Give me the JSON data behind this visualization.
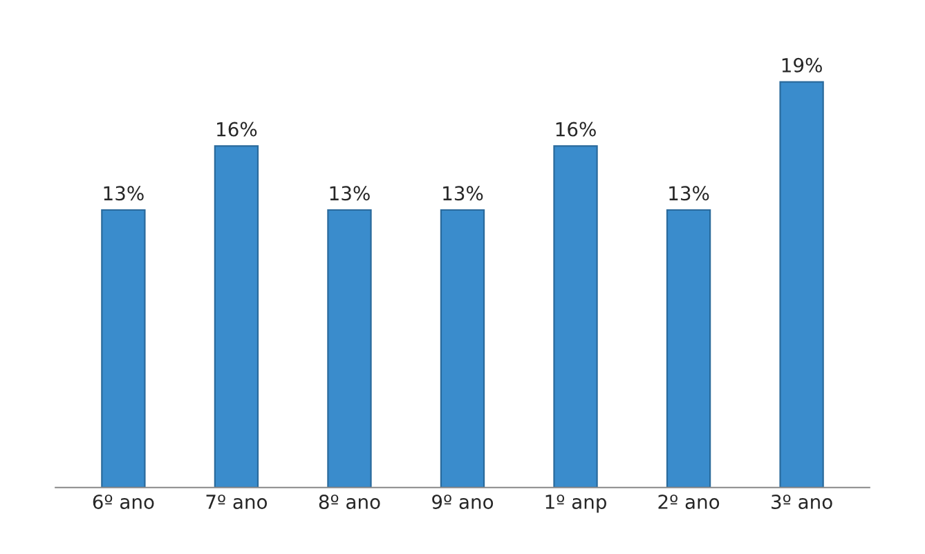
{
  "chart_data": {
    "type": "bar",
    "categories": [
      "6º ano",
      "7º ano",
      "8º ano",
      "9º ano",
      "1º anp",
      "2º ano",
      "3º ano"
    ],
    "values": [
      13,
      16,
      13,
      13,
      16,
      13,
      19
    ],
    "value_labels": [
      "13%",
      "16%",
      "13%",
      "13%",
      "16%",
      "13%",
      "19%"
    ],
    "color": "#3a8ccc"
  }
}
